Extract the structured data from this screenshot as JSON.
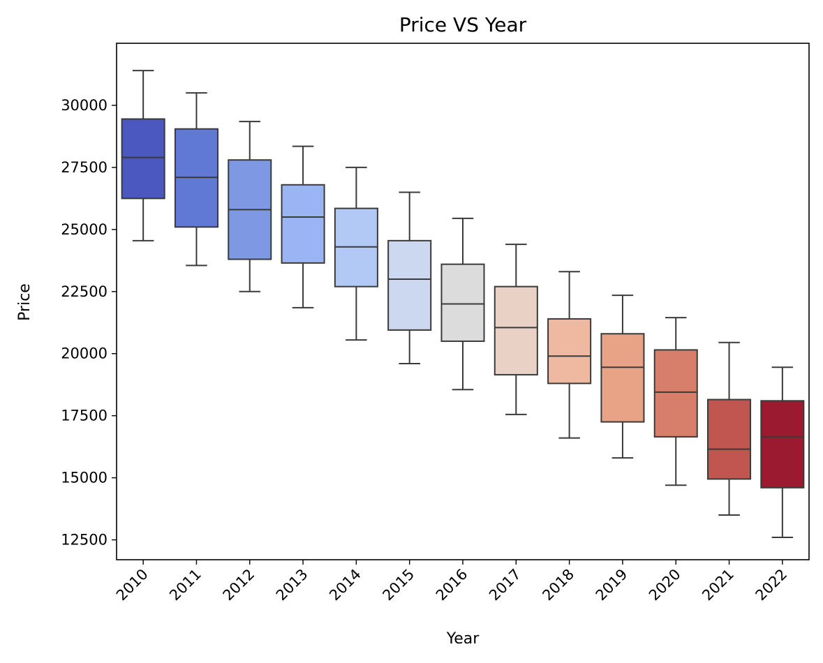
{
  "chart_data": {
    "type": "box",
    "title": "Price VS  Year",
    "xlabel": "Year",
    "ylabel": "Price",
    "ylim": [
      11700,
      32500
    ],
    "yticks": [
      12500,
      15000,
      17500,
      20000,
      22500,
      25000,
      27500,
      30000
    ],
    "grid": false,
    "legend": "none",
    "categories": [
      "2010",
      "2011",
      "2012",
      "2013",
      "2014",
      "2015",
      "2016",
      "2017",
      "2018",
      "2019",
      "2020",
      "2021",
      "2022"
    ],
    "boxes": [
      {
        "year": "2010",
        "whisker_low": 24550,
        "q1": 26250,
        "median": 27900,
        "q3": 29450,
        "whisker_high": 31400,
        "color": "#4a58bf"
      },
      {
        "year": "2011",
        "whisker_low": 23550,
        "q1": 25100,
        "median": 27100,
        "q3": 29050,
        "whisker_high": 30500,
        "color": "#6079d4"
      },
      {
        "year": "2012",
        "whisker_low": 22500,
        "q1": 23800,
        "median": 25800,
        "q3": 27800,
        "whisker_high": 29350,
        "color": "#7e98e4"
      },
      {
        "year": "2013",
        "whisker_low": 21850,
        "q1": 23650,
        "median": 25500,
        "q3": 26800,
        "whisker_high": 28350,
        "color": "#9bb4f4"
      },
      {
        "year": "2014",
        "whisker_low": 20550,
        "q1": 22700,
        "median": 24300,
        "q3": 25850,
        "whisker_high": 27500,
        "color": "#b3c9f5"
      },
      {
        "year": "2015",
        "whisker_low": 19600,
        "q1": 20950,
        "median": 23000,
        "q3": 24550,
        "whisker_high": 26500,
        "color": "#cbd8ef"
      },
      {
        "year": "2016",
        "whisker_low": 18550,
        "q1": 20500,
        "median": 22000,
        "q3": 23600,
        "whisker_high": 25450,
        "color": "#dcdcdc"
      },
      {
        "year": "2017",
        "whisker_low": 17550,
        "q1": 19150,
        "median": 21050,
        "q3": 22700,
        "whisker_high": 24400,
        "color": "#ead1c5"
      },
      {
        "year": "2018",
        "whisker_low": 16600,
        "q1": 18800,
        "median": 19900,
        "q3": 21400,
        "whisker_high": 23300,
        "color": "#eeb9a0"
      },
      {
        "year": "2019",
        "whisker_low": 15800,
        "q1": 17250,
        "median": 19450,
        "q3": 20800,
        "whisker_high": 22350,
        "color": "#e8a286"
      },
      {
        "year": "2020",
        "whisker_low": 14700,
        "q1": 16650,
        "median": 18450,
        "q3": 20150,
        "whisker_high": 21450,
        "color": "#d77f6a"
      },
      {
        "year": "2021",
        "whisker_low": 13500,
        "q1": 14950,
        "median": 16150,
        "q3": 18150,
        "whisker_high": 20450,
        "color": "#c15550"
      },
      {
        "year": "2022",
        "whisker_low": 12600,
        "q1": 14600,
        "median": 16650,
        "q3": 18100,
        "whisker_high": 19450,
        "color": "#9b1a30"
      }
    ]
  }
}
